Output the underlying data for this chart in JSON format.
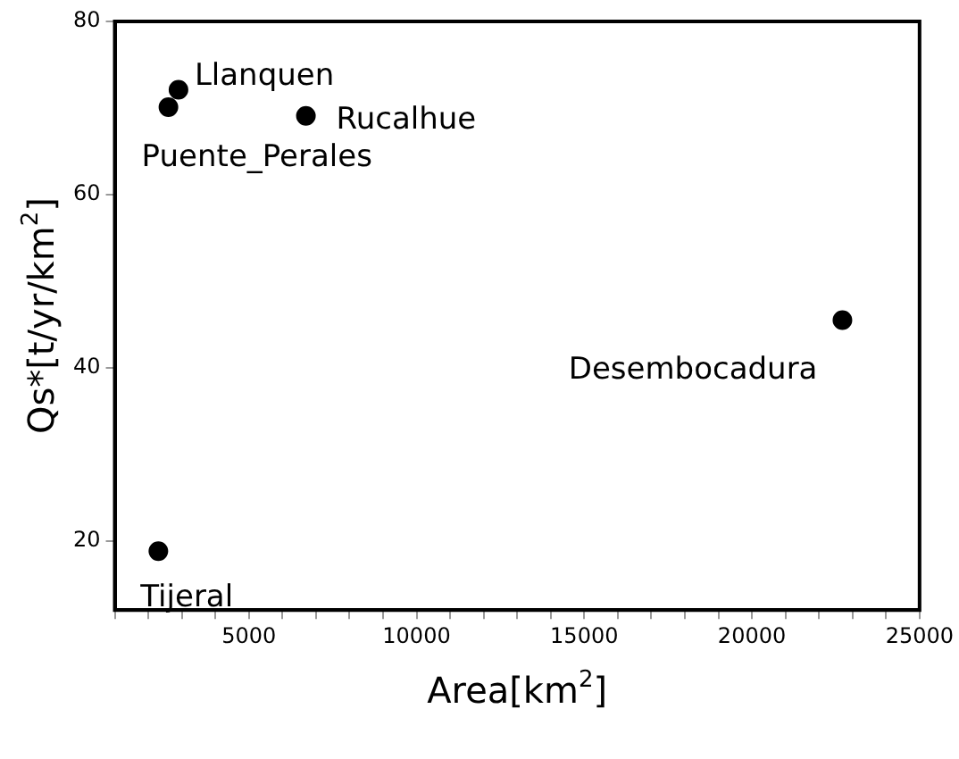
{
  "chart_data": {
    "type": "scatter",
    "xlabel": "Area[km$^{2}$]",
    "ylabel": "Qs*[t/yr/km$^{2}$]",
    "x": [
      2900,
      2600,
      6700,
      22700,
      2300
    ],
    "series": [
      {
        "color": "#000000",
        "values": [
          72.1,
          70.1,
          69.1,
          45.5,
          18.8
        ]
      }
    ],
    "marker": "circle",
    "grid": false,
    "legend": false,
    "xlim": [
      1000,
      25000
    ],
    "xticks": [
      {
        "value": 1000,
        "label": null
      },
      {
        "value": 2000,
        "label": null
      },
      {
        "value": 3000,
        "label": null
      },
      {
        "value": 4000,
        "label": null
      },
      5000,
      {
        "value": 6000,
        "label": null
      },
      {
        "value": 7000,
        "label": null
      },
      {
        "value": 8000,
        "label": null
      },
      {
        "value": 9000,
        "label": null
      },
      10000,
      {
        "value": 11000,
        "label": null
      },
      {
        "value": 12000,
        "label": null
      },
      {
        "value": 13000,
        "label": null
      },
      {
        "value": 14000,
        "label": null
      },
      15000,
      {
        "value": 16000,
        "label": null
      },
      {
        "value": 17000,
        "label": null
      },
      {
        "value": 18000,
        "label": null
      },
      {
        "value": 19000,
        "label": null
      },
      20000,
      {
        "value": 21000,
        "label": null
      },
      {
        "value": 22000,
        "label": null
      },
      {
        "value": 23000,
        "label": null
      },
      {
        "value": 24000,
        "label": null
      },
      25000
    ],
    "ylim": [
      12,
      80
    ],
    "yticks": [
      20,
      40,
      60,
      80
    ],
    "annotations": [
      {
        "text": "Llanquen",
        "x": 2900,
        "y": 72.1
      },
      {
        "text": "Puente_Perales",
        "x": 2600,
        "y": 70.1
      },
      {
        "text": "Rucalhue",
        "x": 6700,
        "y": 69.1
      },
      {
        "text": "Desembocadura",
        "x": 22700,
        "y": 45.5
      },
      {
        "text": "Tijeral",
        "x": 2300,
        "y": 18.8
      }
    ]
  }
}
